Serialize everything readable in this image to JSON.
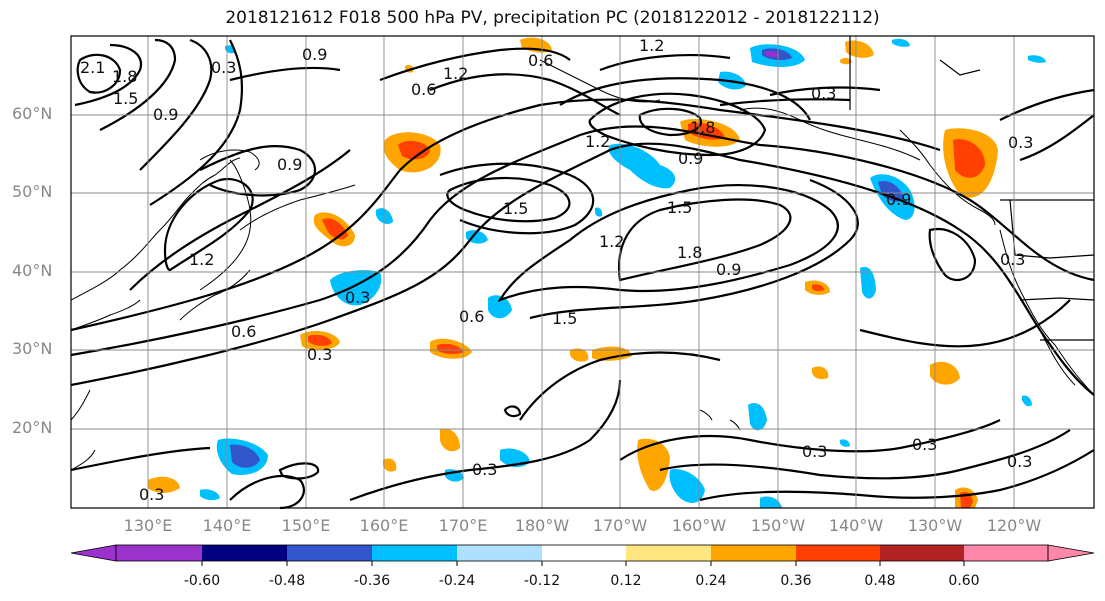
{
  "title": "2018121612 F018 500 hPa PV, precipitation PC (2018122012 - 2018122112)",
  "lat_labels": [
    "60°N",
    "50°N",
    "40°N",
    "30°N",
    "20°N"
  ],
  "lon_labels": [
    "130°E",
    "140°E",
    "150°E",
    "160°E",
    "170°E",
    "180°W",
    "170°W",
    "160°W",
    "150°W",
    "140°W",
    "130°W",
    "120°W"
  ],
  "contour_labels": [
    "2.1",
    "1.8",
    "1.5",
    "0.9",
    "0.3",
    "0.9",
    "1.2",
    "0.6",
    "0.6",
    "1.2",
    "1.8",
    "0.3",
    "1.2",
    "0.9",
    "1.5",
    "0.9",
    "1.5",
    "1.2",
    "1.8",
    "0.9",
    "0.3",
    "1.2",
    "0.6",
    "0.3",
    "0.6",
    "1.5",
    "0.3",
    "0.3",
    "0.3",
    "0.3",
    "0.3",
    "0.3",
    "0.9",
    "0.3"
  ],
  "colorbar": {
    "tick_labels": [
      "-0.60",
      "-0.48",
      "-0.36",
      "-0.24",
      "-0.12",
      "0.12",
      "0.24",
      "0.36",
      "0.48",
      "0.60"
    ],
    "colors": [
      "#9933cc",
      "#000080",
      "#3355cc",
      "#00bfff",
      "#b0e0ff",
      "#ffffff",
      "#ffe680",
      "#ffa500",
      "#ff4000",
      "#b22222",
      "#ff88aa"
    ]
  }
}
